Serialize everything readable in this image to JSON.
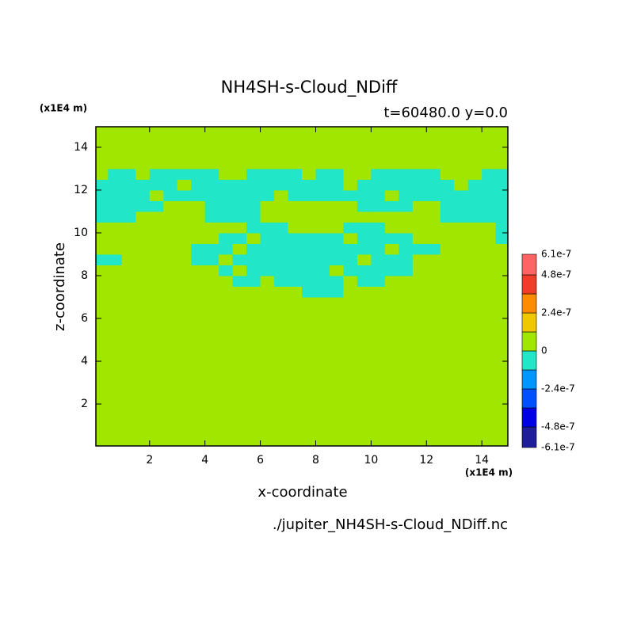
{
  "chart_data": {
    "type": "contour",
    "title": "NH4SH-s-Cloud_NDiff",
    "subtitle": "t=60480.0 y=0.0",
    "x_label": "x-coordinate",
    "y_label": "z-coordinate",
    "x_unit": "(x1E4 m)",
    "y_unit": "(x1E4 m)",
    "source": "./jupiter_NH4SH-s-Cloud_NDiff.nc",
    "xlim": [
      0.06,
      14.94
    ],
    "ylim": [
      0.04,
      14.96
    ],
    "xticks": [
      2,
      4,
      6,
      8,
      10,
      12,
      14
    ],
    "yticks": [
      2,
      4,
      6,
      8,
      10,
      12,
      14
    ],
    "field": {
      "x_edges": [
        0.06,
        0.5,
        1,
        1.5,
        2,
        2.5,
        3,
        3.5,
        4,
        4.5,
        5,
        5.5,
        6,
        6.5,
        7,
        7.5,
        8,
        8.5,
        9,
        9.5,
        10,
        10.5,
        11,
        11.5,
        12,
        12.5,
        13,
        13.5,
        14,
        14.5,
        14.94
      ],
      "y_edges": [
        0.04,
        7,
        7.5,
        8,
        8.5,
        9,
        9.5,
        10,
        10.5,
        11,
        11.5,
        12,
        12.5,
        13,
        14.96
      ],
      "values": [
        [
          6e-08,
          6e-08,
          6e-08,
          6e-08,
          6e-08,
          6e-08,
          6e-08,
          6e-08,
          6e-08,
          6e-08,
          6e-08,
          6e-08,
          6e-08,
          6e-08,
          6e-08,
          6e-08,
          6e-08,
          6e-08,
          6e-08,
          6e-08,
          6e-08,
          6e-08,
          6e-08,
          6e-08,
          6e-08,
          6e-08,
          6e-08,
          6e-08,
          6e-08,
          6e-08
        ],
        [
          6e-08,
          6e-08,
          6e-08,
          6e-08,
          6e-08,
          6e-08,
          6e-08,
          6e-08,
          6e-08,
          6e-08,
          6e-08,
          6e-08,
          6e-08,
          6e-08,
          6e-08,
          -6e-08,
          -6e-08,
          -6e-08,
          6e-08,
          6e-08,
          6e-08,
          6e-08,
          6e-08,
          6e-08,
          6e-08,
          6e-08,
          6e-08,
          6e-08,
          6e-08,
          6e-08
        ],
        [
          6e-08,
          6e-08,
          6e-08,
          6e-08,
          6e-08,
          6e-08,
          6e-08,
          6e-08,
          6e-08,
          6e-08,
          -6e-08,
          -6e-08,
          6e-08,
          -6e-08,
          -6e-08,
          -6e-08,
          -6e-08,
          -6e-08,
          6e-08,
          -6e-08,
          -6e-08,
          6e-08,
          6e-08,
          6e-08,
          6e-08,
          6e-08,
          6e-08,
          6e-08,
          6e-08,
          6e-08
        ],
        [
          6e-08,
          6e-08,
          6e-08,
          6e-08,
          6e-08,
          6e-08,
          6e-08,
          6e-08,
          6e-08,
          -6e-08,
          6e-08,
          -6e-08,
          -6e-08,
          -6e-08,
          -6e-08,
          -6e-08,
          -6e-08,
          6e-08,
          -6e-08,
          -6e-08,
          -6e-08,
          -6e-08,
          -6e-08,
          6e-08,
          6e-08,
          6e-08,
          6e-08,
          6e-08,
          6e-08,
          6e-08
        ],
        [
          -6e-08,
          -6e-08,
          6e-08,
          6e-08,
          6e-08,
          6e-08,
          6e-08,
          -6e-08,
          -6e-08,
          6e-08,
          -6e-08,
          -6e-08,
          -6e-08,
          -6e-08,
          -6e-08,
          -6e-08,
          -6e-08,
          -6e-08,
          -6e-08,
          6e-08,
          -6e-08,
          -6e-08,
          -6e-08,
          6e-08,
          6e-08,
          6e-08,
          6e-08,
          6e-08,
          6e-08,
          6e-08
        ],
        [
          6e-08,
          6e-08,
          6e-08,
          6e-08,
          6e-08,
          6e-08,
          6e-08,
          -6e-08,
          -6e-08,
          -6e-08,
          6e-08,
          -6e-08,
          -6e-08,
          -6e-08,
          -6e-08,
          -6e-08,
          -6e-08,
          -6e-08,
          -6e-08,
          -6e-08,
          -6e-08,
          6e-08,
          -6e-08,
          -6e-08,
          -6e-08,
          6e-08,
          6e-08,
          6e-08,
          6e-08,
          6e-08
        ],
        [
          6e-08,
          6e-08,
          6e-08,
          6e-08,
          6e-08,
          6e-08,
          6e-08,
          6e-08,
          6e-08,
          -6e-08,
          -6e-08,
          6e-08,
          -6e-08,
          -6e-08,
          -6e-08,
          -6e-08,
          -6e-08,
          -6e-08,
          6e-08,
          -6e-08,
          -6e-08,
          -6e-08,
          -6e-08,
          6e-08,
          6e-08,
          6e-08,
          6e-08,
          6e-08,
          6e-08,
          -6e-08
        ],
        [
          6e-08,
          6e-08,
          6e-08,
          6e-08,
          6e-08,
          6e-08,
          6e-08,
          6e-08,
          6e-08,
          6e-08,
          6e-08,
          -6e-08,
          -6e-08,
          -6e-08,
          6e-08,
          6e-08,
          6e-08,
          6e-08,
          -6e-08,
          -6e-08,
          -6e-08,
          6e-08,
          6e-08,
          6e-08,
          6e-08,
          6e-08,
          6e-08,
          6e-08,
          6e-08,
          -6e-08
        ],
        [
          -6e-08,
          -6e-08,
          -6e-08,
          6e-08,
          6e-08,
          6e-08,
          6e-08,
          6e-08,
          -6e-08,
          -6e-08,
          -6e-08,
          -6e-08,
          6e-08,
          6e-08,
          6e-08,
          6e-08,
          6e-08,
          6e-08,
          6e-08,
          6e-08,
          6e-08,
          6e-08,
          6e-08,
          6e-08,
          6e-08,
          -6e-08,
          -6e-08,
          -6e-08,
          -6e-08,
          -6e-08
        ],
        [
          -6e-08,
          -6e-08,
          -6e-08,
          -6e-08,
          -6e-08,
          6e-08,
          6e-08,
          6e-08,
          -6e-08,
          -6e-08,
          -6e-08,
          -6e-08,
          6e-08,
          6e-08,
          6e-08,
          6e-08,
          6e-08,
          6e-08,
          6e-08,
          -6e-08,
          -6e-08,
          -6e-08,
          -6e-08,
          6e-08,
          6e-08,
          -6e-08,
          -6e-08,
          -6e-08,
          -6e-08,
          -6e-08
        ],
        [
          -6e-08,
          -6e-08,
          -6e-08,
          -6e-08,
          6e-08,
          -6e-08,
          -6e-08,
          -6e-08,
          -6e-08,
          -6e-08,
          -6e-08,
          -6e-08,
          -6e-08,
          6e-08,
          -6e-08,
          -6e-08,
          -6e-08,
          -6e-08,
          -6e-08,
          -6e-08,
          -6e-08,
          6e-08,
          -6e-08,
          -6e-08,
          -6e-08,
          -6e-08,
          -6e-08,
          -6e-08,
          -6e-08,
          -6e-08
        ],
        [
          -6e-08,
          -6e-08,
          -6e-08,
          -6e-08,
          -6e-08,
          -6e-08,
          6e-08,
          -6e-08,
          -6e-08,
          -6e-08,
          -6e-08,
          -6e-08,
          -6e-08,
          -6e-08,
          -6e-08,
          -6e-08,
          -6e-08,
          -6e-08,
          6e-08,
          -6e-08,
          -6e-08,
          -6e-08,
          -6e-08,
          -6e-08,
          -6e-08,
          -6e-08,
          6e-08,
          -6e-08,
          -6e-08,
          -6e-08
        ],
        [
          6e-08,
          -6e-08,
          -6e-08,
          6e-08,
          -6e-08,
          -6e-08,
          -6e-08,
          -6e-08,
          -6e-08,
          6e-08,
          6e-08,
          -6e-08,
          -6e-08,
          -6e-08,
          -6e-08,
          6e-08,
          -6e-08,
          -6e-08,
          6e-08,
          6e-08,
          -6e-08,
          -6e-08,
          -6e-08,
          -6e-08,
          -6e-08,
          6e-08,
          6e-08,
          6e-08,
          -6e-08,
          -6e-08
        ],
        [
          6e-08,
          6e-08,
          6e-08,
          6e-08,
          6e-08,
          6e-08,
          6e-08,
          6e-08,
          6e-08,
          6e-08,
          6e-08,
          6e-08,
          6e-08,
          6e-08,
          6e-08,
          6e-08,
          6e-08,
          6e-08,
          6e-08,
          6e-08,
          6e-08,
          6e-08,
          6e-08,
          6e-08,
          6e-08,
          6e-08,
          6e-08,
          6e-08,
          6e-08,
          6e-08
        ]
      ]
    },
    "colorbar": {
      "levels": [
        -6.1e-07,
        -4.8e-07,
        -3.6e-07,
        -2.4e-07,
        -1.2e-07,
        0,
        1.2e-07,
        2.4e-07,
        3.6e-07,
        4.8e-07,
        6.1e-07
      ],
      "colors": [
        "#1e1e9b",
        "#0000e6",
        "#0050ff",
        "#0096ff",
        "#22e6c8",
        "#a0e600",
        "#f0c800",
        "#ff8c00",
        "#f03c28",
        "#ff6464"
      ],
      "ticks": [
        6.1e-07,
        4.8e-07,
        2.4e-07,
        0,
        -2.4e-07,
        -4.8e-07,
        -6.1e-07
      ]
    }
  }
}
